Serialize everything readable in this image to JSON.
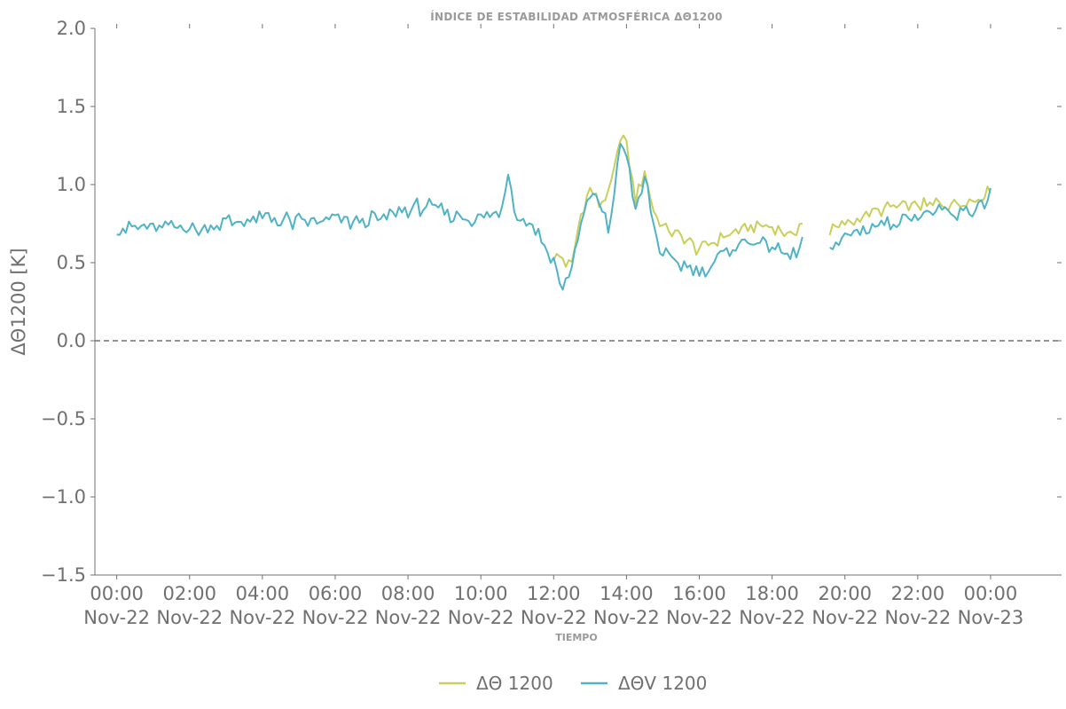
{
  "chart_data": {
    "type": "line",
    "title": "ÍNDICE DE ESTABILIDAD ATMOSFÉRICA ΔΘ1200",
    "xlabel": "TIEMPO",
    "ylabel": "ΔΘ1200 [K]",
    "ylim": [
      -1.5,
      2.0
    ],
    "xlim_hours": [
      -0.6,
      25.95
    ],
    "yticks": [
      2.0,
      1.5,
      1.0,
      0.5,
      0.0,
      -0.5,
      -1.0,
      -1.5
    ],
    "ytick_labels": [
      "2.0",
      "1.5",
      "1.0",
      "0.5",
      "0.0",
      "−0.5",
      "−1.0",
      "−1.5"
    ],
    "xticks_hours": [
      0,
      2,
      4,
      6,
      8,
      10,
      12,
      14,
      16,
      18,
      20,
      22,
      24
    ],
    "xtick_labels": [
      [
        "00:00",
        "Nov-22"
      ],
      [
        "02:00",
        "Nov-22"
      ],
      [
        "04:00",
        "Nov-22"
      ],
      [
        "06:00",
        "Nov-22"
      ],
      [
        "08:00",
        "Nov-22"
      ],
      [
        "10:00",
        "Nov-22"
      ],
      [
        "12:00",
        "Nov-22"
      ],
      [
        "14:00",
        "Nov-22"
      ],
      [
        "16:00",
        "Nov-22"
      ],
      [
        "18:00",
        "Nov-22"
      ],
      [
        "20:00",
        "Nov-22"
      ],
      [
        "22:00",
        "Nov-22"
      ],
      [
        "00:00",
        "Nov-23"
      ]
    ],
    "reference_line": {
      "y": 0.0,
      "style": "dashed",
      "color": "#707070"
    },
    "grid": false,
    "legend_placement": "bottom-center",
    "series": [
      {
        "name": "ΔΘ 1200",
        "color": "#c9cf5a",
        "x_hours": [
          12.0,
          12.5,
          12.75,
          13.0,
          13.25,
          13.5,
          13.75,
          13.85,
          14.0,
          14.25,
          14.5,
          14.75,
          15.0,
          15.5,
          16.0,
          16.5,
          17.0,
          17.5,
          18.0,
          18.5,
          18.85,
          19.0,
          19.5,
          20.0,
          20.5,
          21.0,
          21.5,
          22.0,
          22.5,
          23.0,
          23.5,
          24.0
        ],
        "y": [
          0.55,
          0.48,
          0.82,
          0.98,
          0.88,
          0.92,
          1.18,
          1.32,
          1.25,
          0.92,
          1.08,
          0.82,
          0.72,
          0.66,
          0.58,
          0.65,
          0.7,
          0.74,
          0.72,
          0.68,
          0.76,
          null,
          0.7,
          0.74,
          0.8,
          0.84,
          0.86,
          0.86,
          0.88,
          0.88,
          0.9,
          0.97
        ]
      },
      {
        "name": "ΔΘV 1200",
        "color": "#4fb3c5",
        "x_hours": [
          0.0,
          0.5,
          1.0,
          1.5,
          2.0,
          2.5,
          3.0,
          3.5,
          4.0,
          4.5,
          5.0,
          5.5,
          6.0,
          6.5,
          7.0,
          7.5,
          8.0,
          8.5,
          9.0,
          9.5,
          10.0,
          10.5,
          10.75,
          11.0,
          11.5,
          12.0,
          12.25,
          12.5,
          12.75,
          13.0,
          13.25,
          13.5,
          13.75,
          13.85,
          14.0,
          14.25,
          14.5,
          14.75,
          15.0,
          15.5,
          16.0,
          16.5,
          17.0,
          17.5,
          18.0,
          18.5,
          18.85,
          19.0,
          19.5,
          20.0,
          20.5,
          21.0,
          21.5,
          22.0,
          22.5,
          23.0,
          23.5,
          24.0
        ],
        "y": [
          0.73,
          0.72,
          0.72,
          0.73,
          0.73,
          0.72,
          0.76,
          0.75,
          0.79,
          0.77,
          0.76,
          0.76,
          0.78,
          0.76,
          0.77,
          0.8,
          0.84,
          0.86,
          0.82,
          0.8,
          0.78,
          0.8,
          1.06,
          0.8,
          0.72,
          0.5,
          0.32,
          0.48,
          0.75,
          0.92,
          0.88,
          0.7,
          1.1,
          1.28,
          1.2,
          0.82,
          1.05,
          0.72,
          0.55,
          0.48,
          0.45,
          0.52,
          0.62,
          0.64,
          0.6,
          0.52,
          0.64,
          null,
          0.6,
          0.66,
          0.72,
          0.74,
          0.78,
          0.8,
          0.82,
          0.8,
          0.84,
          0.93
        ]
      }
    ]
  },
  "legend": {
    "items": [
      {
        "label": "ΔΘ 1200",
        "color": "#c9cf5a"
      },
      {
        "label": "ΔΘV 1200",
        "color": "#4fb3c5"
      }
    ]
  },
  "colors": {
    "text": "#707070",
    "title": "#9a9a9a",
    "axis": "#707070",
    "series1": "#c9cf5a",
    "series2": "#4fb3c5"
  }
}
